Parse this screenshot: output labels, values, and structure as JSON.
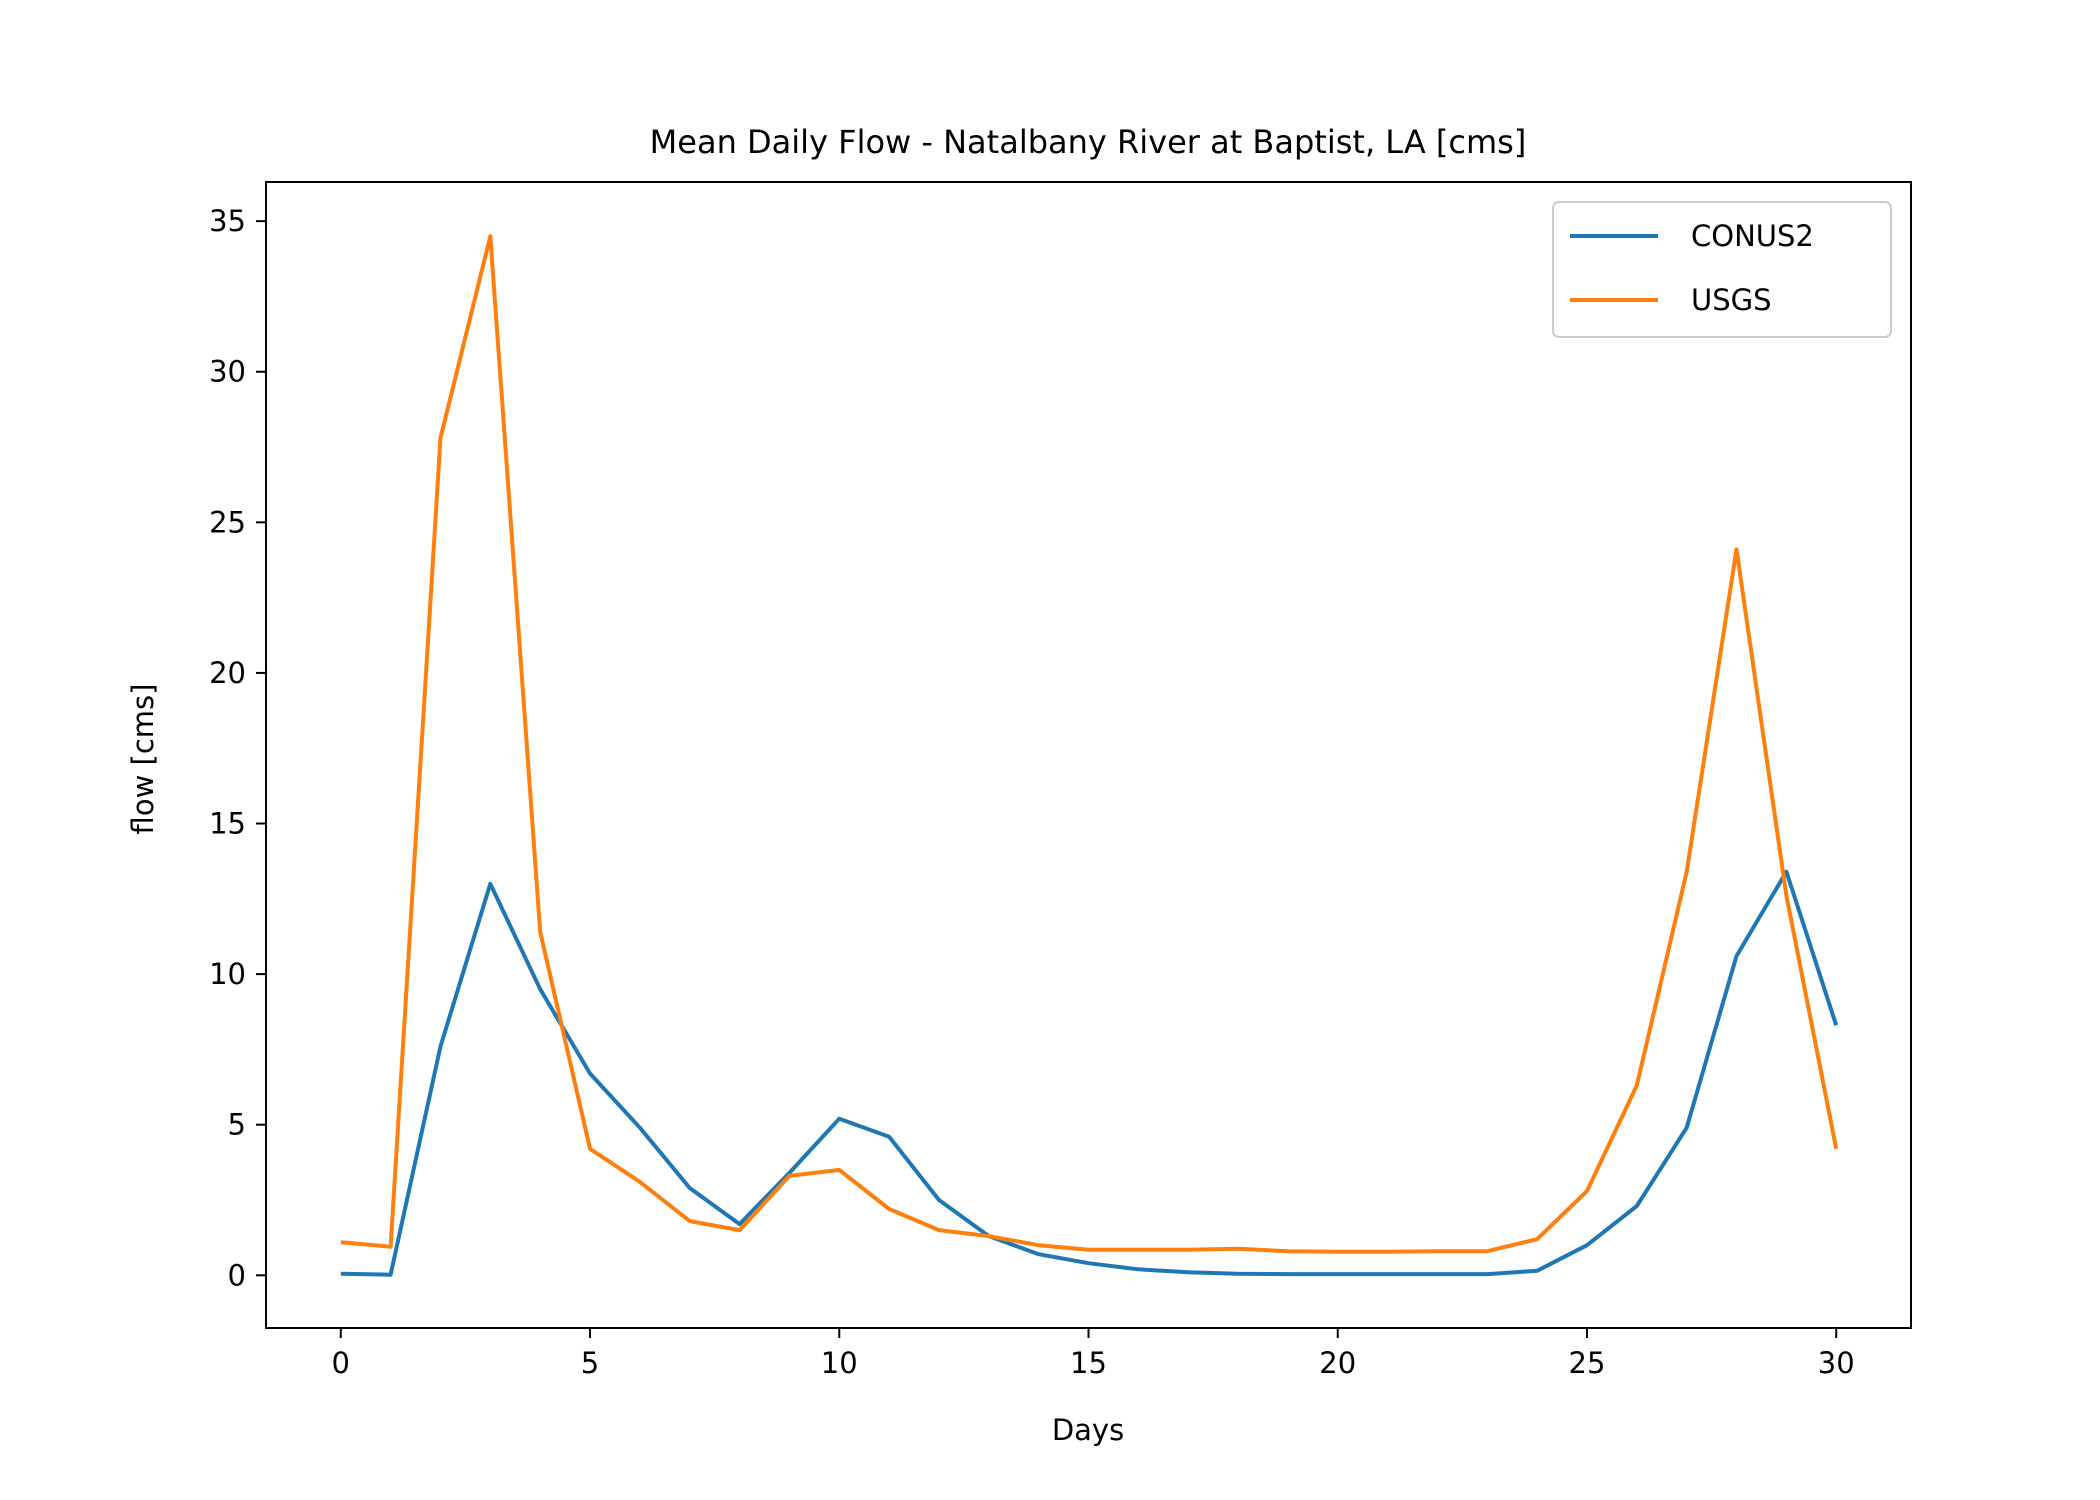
{
  "chart_data": {
    "type": "line",
    "title": "Mean Daily Flow - Natalbany River at Baptist, LA [cms]",
    "xlabel": "Days",
    "ylabel": "flow [cms]",
    "xlim": [
      -1.5,
      31.5
    ],
    "ylim": [
      -1.75,
      36.3
    ],
    "xticks": [
      0,
      5,
      10,
      15,
      20,
      25,
      30
    ],
    "yticks": [
      0,
      5,
      10,
      15,
      20,
      25,
      30,
      35
    ],
    "x": [
      0,
      1,
      2,
      3,
      4,
      5,
      6,
      7,
      8,
      9,
      10,
      11,
      12,
      13,
      14,
      15,
      16,
      17,
      18,
      19,
      20,
      21,
      22,
      23,
      24,
      25,
      26,
      27,
      28,
      29,
      30
    ],
    "series": [
      {
        "name": "CONUS2",
        "color": "#1f77b4",
        "values": [
          0.05,
          0.02,
          7.6,
          13.0,
          9.5,
          6.7,
          4.9,
          2.9,
          1.7,
          3.4,
          5.2,
          4.6,
          2.5,
          1.3,
          0.7,
          0.4,
          0.2,
          0.1,
          0.05,
          0.04,
          0.04,
          0.04,
          0.04,
          0.04,
          0.15,
          1.0,
          2.3,
          4.9,
          10.6,
          13.4,
          8.3
        ]
      },
      {
        "name": "USGS",
        "color": "#ff7f0e",
        "values": [
          1.1,
          0.95,
          27.8,
          34.5,
          11.4,
          4.2,
          3.1,
          1.8,
          1.5,
          3.3,
          3.5,
          2.2,
          1.5,
          1.3,
          1.0,
          0.85,
          0.85,
          0.85,
          0.88,
          0.8,
          0.78,
          0.78,
          0.8,
          0.8,
          1.2,
          2.8,
          6.3,
          13.4,
          24.1,
          12.6,
          4.2
        ]
      }
    ],
    "legend": {
      "placement": "top-right"
    },
    "grid": false
  }
}
